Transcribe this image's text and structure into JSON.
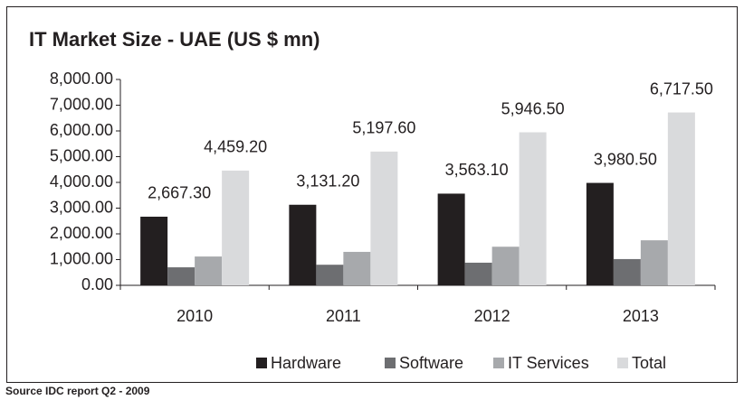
{
  "chart_data": {
    "type": "bar",
    "title": "IT Market Size - UAE (US $ mn)",
    "categories": [
      "2010",
      "2011",
      "2012",
      "2013"
    ],
    "series": [
      {
        "name": "Hardware",
        "color": "#231f20",
        "values": [
          2667.3,
          3131.2,
          3563.1,
          3980.5
        ],
        "value_labels": [
          "2,667.30",
          "3,131.20",
          "3,563.10",
          "3,980.50"
        ]
      },
      {
        "name": "Software",
        "color": "#6d6e71",
        "values": [
          700,
          800,
          880,
          1020
        ]
      },
      {
        "name": "IT Services",
        "color": "#a7a9ac",
        "values": [
          1120,
          1300,
          1500,
          1750
        ]
      },
      {
        "name": "Total",
        "color": "#d9dadc",
        "values": [
          4459.2,
          5197.6,
          5946.5,
          6717.5
        ],
        "value_labels": [
          "4,459.20",
          "5,197.60",
          "5,946.50",
          "6,717.50"
        ]
      }
    ],
    "ylim": [
      0,
      8000
    ],
    "yticks": [
      {
        "value": 0,
        "label": "0.00"
      },
      {
        "value": 1000,
        "label": "1,000.00"
      },
      {
        "value": 2000,
        "label": "2,000.00"
      },
      {
        "value": 3000,
        "label": "3,000.00"
      },
      {
        "value": 4000,
        "label": "4,000.00"
      },
      {
        "value": 5000,
        "label": "5,000.00"
      },
      {
        "value": 6000,
        "label": "6,000.00"
      },
      {
        "value": 7000,
        "label": "7,000.00"
      },
      {
        "value": 8000,
        "label": "8,000.00"
      }
    ],
    "legend": "bottom",
    "source": "Source IDC report Q2 - 2009"
  }
}
